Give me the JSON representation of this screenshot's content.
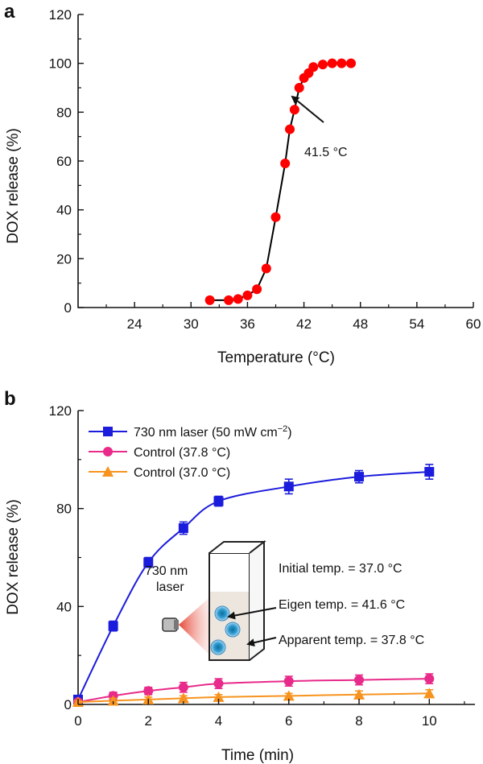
{
  "chart_data": [
    {
      "panel": "a",
      "type": "line",
      "xlabel": "Temperature (°C)",
      "ylabel": "DOX release (%)",
      "xlim": [
        18,
        60
      ],
      "ylim": [
        0,
        120
      ],
      "xticks": [
        "24",
        "30",
        "36",
        "42",
        "48",
        "54",
        "60"
      ],
      "yticks": [
        "0",
        "20",
        "40",
        "60",
        "80",
        "100",
        "120"
      ],
      "marker_color": "#ff0000",
      "line_color": "#000000",
      "series": [
        {
          "x": [
            32,
            34,
            35,
            36,
            37,
            38,
            39,
            40,
            40.5,
            41,
            41.5,
            42,
            42.5,
            43,
            44,
            45,
            46,
            47
          ],
          "y": [
            3,
            3,
            3.5,
            5,
            7.5,
            16,
            37,
            59,
            73,
            81,
            90,
            94,
            96,
            98.5,
            99.5,
            100,
            100,
            100
          ]
        }
      ],
      "annotations": [
        {
          "text": "41.5 °C"
        }
      ]
    },
    {
      "panel": "b",
      "type": "line",
      "xlabel": "Time (min)",
      "ylabel": "DOX release (%)",
      "xlim": [
        0,
        11.3
      ],
      "ylim": [
        0,
        120
      ],
      "xticks": [
        "0",
        "2",
        "4",
        "6",
        "8",
        "10"
      ],
      "yticks": [
        "0",
        "40",
        "80",
        "120"
      ],
      "legend_position": "top-left",
      "series": [
        {
          "name": "730 nm laser (50 mW cm",
          "name_sup": "−2",
          "name_end": ")",
          "color": "#1c1cdc",
          "marker": "square",
          "x": [
            0,
            1,
            2,
            3,
            4,
            6,
            8,
            10
          ],
          "y": [
            2,
            32,
            58,
            72,
            83,
            89,
            93,
            95
          ],
          "err": [
            0.5,
            2,
            2,
            2.5,
            2,
            3,
            2.5,
            3
          ]
        },
        {
          "name": "Control (37.8 °C)",
          "color": "#e82a8a",
          "marker": "circle",
          "x": [
            0,
            1,
            2,
            3,
            4,
            6,
            8,
            10
          ],
          "y": [
            1,
            3.5,
            5.5,
            7,
            8.5,
            9.5,
            10,
            10.5
          ],
          "err": [
            0.5,
            1.5,
            1.5,
            2,
            2,
            2,
            2,
            2
          ]
        },
        {
          "name": "Control (37.0 °C)",
          "color": "#f7931e",
          "marker": "triangle",
          "x": [
            0,
            1,
            2,
            3,
            4,
            6,
            8,
            10
          ],
          "y": [
            1,
            1.5,
            2,
            2.5,
            3,
            3.5,
            4,
            4.5
          ],
          "err": [
            0.5,
            1,
            1,
            1,
            1,
            1,
            1.5,
            1.5
          ]
        }
      ],
      "inset": {
        "laser_line1": "730 nm",
        "laser_line2": "laser",
        "initial_temp": "Initial temp. = 37.0 °C",
        "eigen_temp": "Eigen temp. = 41.6 °C",
        "apparent_temp": "Apparent temp. = 37.8 °C"
      }
    }
  ]
}
